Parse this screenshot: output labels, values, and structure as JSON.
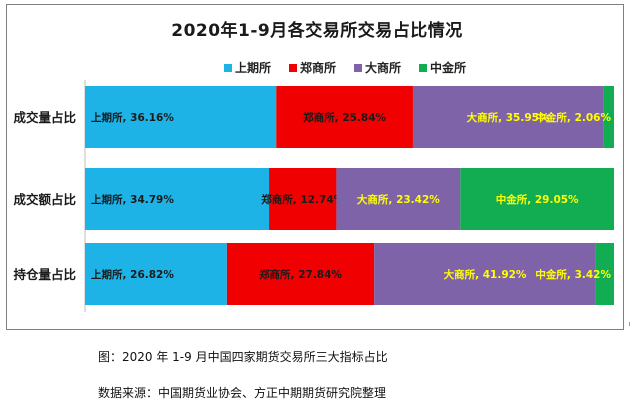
{
  "chart_data": {
    "type": "bar",
    "orientation": "horizontal",
    "stacked": "percent",
    "title": "2020年1-9月各交易所交易占比情况",
    "categories": [
      "成交量占比",
      "成交额占比",
      "持仓量占比"
    ],
    "series": [
      {
        "name": "上期所",
        "color": "#1eb3e6",
        "label_color": "#1a1a1a",
        "values": [
          36.16,
          34.79,
          26.82
        ],
        "labels": [
          "上期所, 36.16%",
          "上期所, 34.79%",
          "上期所, 26.82%"
        ]
      },
      {
        "name": "郑商所",
        "color": "#f00000",
        "label_color": "#1a1a1a",
        "values": [
          25.84,
          12.74,
          27.84
        ],
        "labels": [
          "郑商所, 25.84%",
          "郑商所, 12.74%",
          "郑商所, 27.84%"
        ]
      },
      {
        "name": "大商所",
        "color": "#7f63a8",
        "label_color": "#ffff00",
        "values": [
          35.95,
          23.42,
          41.92
        ],
        "labels": [
          "大商所, 35.95%",
          "大商所, 23.42%",
          "大商所, 41.92%"
        ]
      },
      {
        "name": "中金所",
        "color": "#12ad52",
        "label_color": "#ffff00",
        "values": [
          2.06,
          29.05,
          3.42
        ],
        "labels": [
          "中金所, 2.06%",
          "中金所, 29.05%",
          "中金所, 3.42%"
        ]
      }
    ],
    "legend_position": "top",
    "grid": false
  },
  "captions": {
    "figure": "图：2020 年 1-9 月中国四家期货交易所三大指标占比",
    "source": "数据来源：中国期货业协会、方正中期期货研究院整理"
  }
}
